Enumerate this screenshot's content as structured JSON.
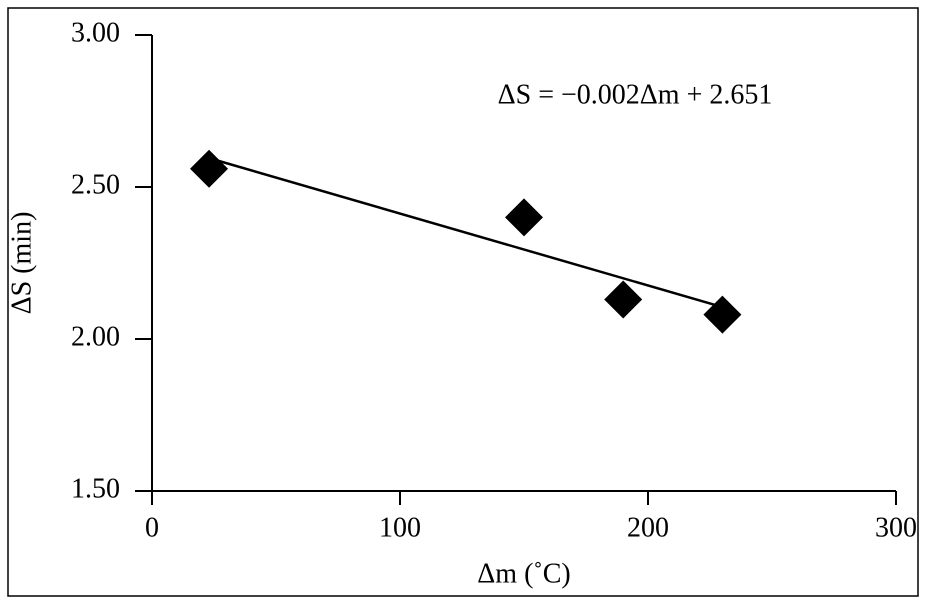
{
  "chart_data": {
    "type": "scatter",
    "x_label": "Δm (˚C)",
    "y_label": "ΔS (min)",
    "annotation": "ΔS = −0.002Δm + 2.651",
    "x": [
      23,
      150,
      190,
      230
    ],
    "values": [
      2.56,
      2.4,
      2.13,
      2.08
    ],
    "color": "#000000",
    "trendline": {
      "x": [
        23,
        230
      ],
      "values": [
        2.595,
        2.105
      ]
    },
    "xlim": [
      0,
      300
    ],
    "xticks": [
      0,
      100,
      200,
      300
    ],
    "ylim": [
      1.5,
      3
    ],
    "yticks": [
      {
        "value": 1.5,
        "label": "1.50"
      },
      {
        "value": 2,
        "label": "2.00"
      },
      {
        "value": 2.5,
        "label": "2.50"
      },
      {
        "value": 3,
        "label": "3.00"
      }
    ]
  }
}
